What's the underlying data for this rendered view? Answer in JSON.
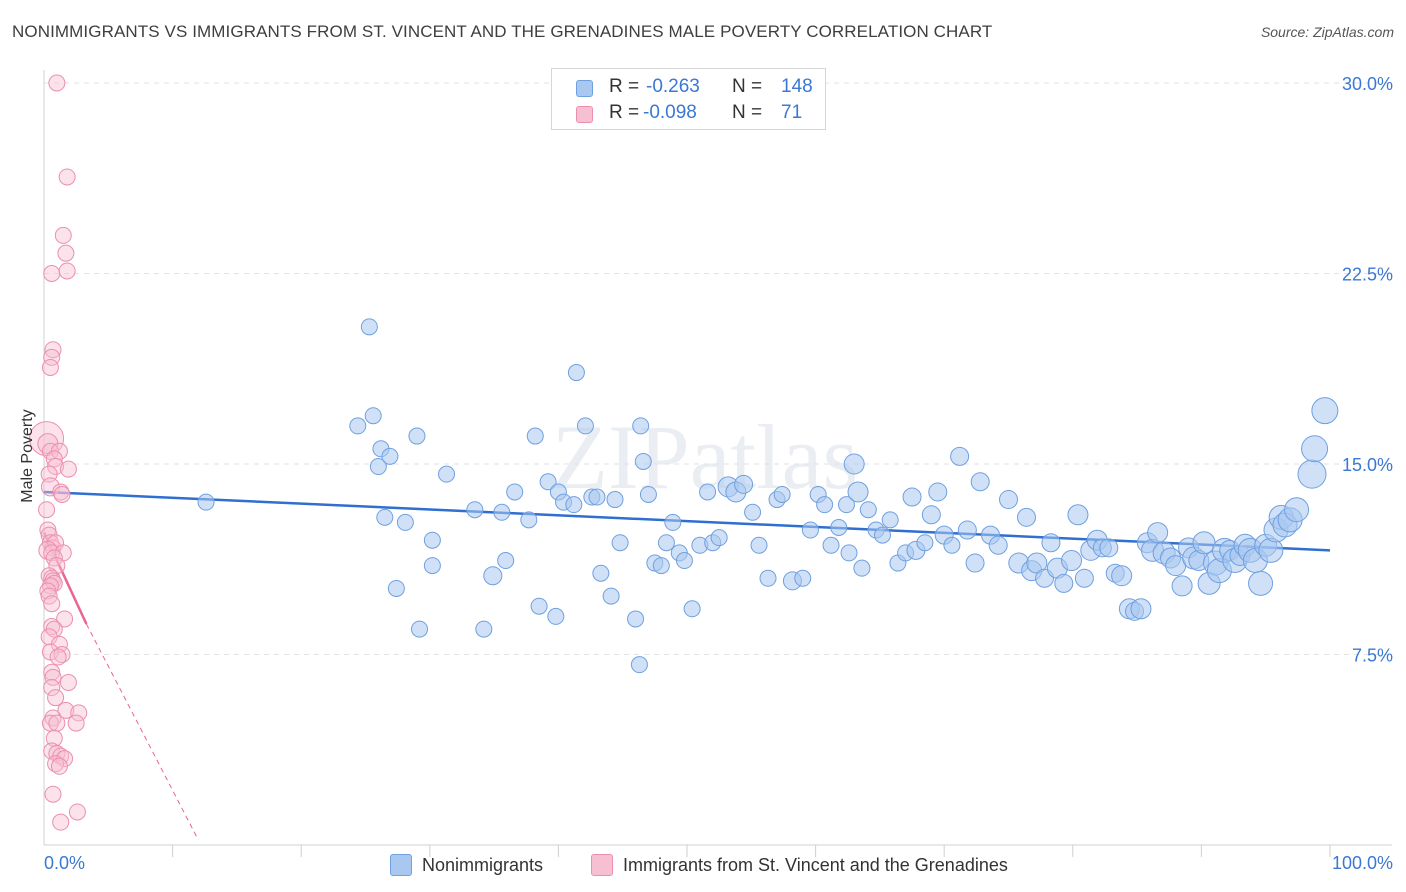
{
  "title": "NONIMMIGRANTS VS IMMIGRANTS FROM ST. VINCENT AND THE GRENADINES MALE POVERTY CORRELATION CHART",
  "source": "Source: ZipAtlas.com",
  "watermark": "ZIPatlas",
  "colors": {
    "blue_fill": "#a9c8f0",
    "blue_stroke": "#6fa0e0",
    "blue_line": "#2f6fd0",
    "pink_fill": "#f7bfd2",
    "pink_stroke": "#ec8fae",
    "pink_line": "#e8668f",
    "value_text": "#3a78d4",
    "grid": "#e2e2e2"
  },
  "stats": {
    "rows": [
      {
        "r_label": "R =",
        "r_value": "-0.263",
        "n_label": "N =",
        "n_value": "148"
      },
      {
        "r_label": "R =",
        "r_value": "-0.098",
        "n_label": "N =",
        "n_value": "71"
      }
    ]
  },
  "legend": {
    "nonimmigrants": "Nonimmigrants",
    "immigrants": "Immigrants from St. Vincent and the Grenadines"
  },
  "chart_data": {
    "type": "scatter",
    "title": "NONIMMIGRANTS VS IMMIGRANTS FROM ST. VINCENT AND THE GRENADINES MALE POVERTY CORRELATION CHART",
    "xlabel": "",
    "ylabel": "Male Poverty",
    "xlim": [
      0,
      100
    ],
    "ylim": [
      0,
      30.5
    ],
    "x_tick_labels": [
      "0.0%",
      "100.0%"
    ],
    "y_ticks": [
      7.5,
      15.0,
      22.5,
      30.0
    ],
    "y_tick_labels": [
      "7.5%",
      "15.0%",
      "22.5%",
      "30.0%"
    ],
    "grid": true,
    "series": [
      {
        "name": "Nonimmigrants",
        "color": "#a9c8f0",
        "trend": {
          "x": [
            0,
            100
          ],
          "y": [
            13.9,
            11.6
          ],
          "style": "solid"
        },
        "points": [
          [
            12.6,
            13.5,
            5
          ],
          [
            24.4,
            16.5,
            5
          ],
          [
            25.3,
            20.4,
            5
          ],
          [
            25.6,
            16.9,
            5
          ],
          [
            26.0,
            14.9,
            5
          ],
          [
            26.2,
            15.6,
            5
          ],
          [
            26.5,
            12.9,
            5
          ],
          [
            26.9,
            15.3,
            5
          ],
          [
            27.4,
            10.1,
            5
          ],
          [
            28.1,
            12.7,
            5
          ],
          [
            29.0,
            16.1,
            5
          ],
          [
            29.2,
            8.5,
            5
          ],
          [
            30.2,
            12.0,
            5
          ],
          [
            30.2,
            11.0,
            5
          ],
          [
            31.3,
            14.6,
            5
          ],
          [
            33.5,
            13.2,
            5
          ],
          [
            34.2,
            8.5,
            5
          ],
          [
            34.9,
            10.6,
            6
          ],
          [
            35.9,
            11.2,
            5
          ],
          [
            35.6,
            13.1,
            5
          ],
          [
            36.6,
            13.9,
            5
          ],
          [
            37.7,
            12.8,
            5
          ],
          [
            38.2,
            16.1,
            5
          ],
          [
            38.5,
            9.4,
            5
          ],
          [
            39.2,
            14.3,
            5
          ],
          [
            39.8,
            9.0,
            5
          ],
          [
            40.0,
            13.9,
            5
          ],
          [
            40.4,
            13.5,
            5
          ],
          [
            41.2,
            13.4,
            5
          ],
          [
            41.4,
            18.6,
            5
          ],
          [
            42.1,
            16.5,
            5
          ],
          [
            42.6,
            13.7,
            5
          ],
          [
            43.0,
            13.7,
            5
          ],
          [
            43.3,
            10.7,
            5
          ],
          [
            44.1,
            9.8,
            5
          ],
          [
            44.4,
            13.6,
            5
          ],
          [
            44.8,
            11.9,
            5
          ],
          [
            46.0,
            8.9,
            5
          ],
          [
            46.4,
            16.5,
            5
          ],
          [
            46.6,
            15.1,
            5
          ],
          [
            46.3,
            7.1,
            5
          ],
          [
            47.0,
            13.8,
            5
          ],
          [
            47.5,
            11.1,
            5
          ],
          [
            48.0,
            11.0,
            5
          ],
          [
            48.4,
            11.9,
            5
          ],
          [
            48.9,
            12.7,
            5
          ],
          [
            49.4,
            11.5,
            5
          ],
          [
            49.8,
            11.2,
            5
          ],
          [
            50.4,
            9.3,
            5
          ],
          [
            51.0,
            11.8,
            5
          ],
          [
            51.6,
            13.9,
            5
          ],
          [
            52.0,
            11.9,
            5
          ],
          [
            52.5,
            12.1,
            5
          ],
          [
            53.2,
            14.1,
            7
          ],
          [
            53.8,
            13.9,
            7
          ],
          [
            54.4,
            14.2,
            6
          ],
          [
            55.1,
            13.1,
            5
          ],
          [
            55.6,
            11.8,
            5
          ],
          [
            56.3,
            10.5,
            5
          ],
          [
            57.0,
            13.6,
            5
          ],
          [
            57.4,
            13.8,
            5
          ],
          [
            58.2,
            10.4,
            6
          ],
          [
            59.0,
            10.5,
            5
          ],
          [
            59.6,
            12.4,
            5
          ],
          [
            60.2,
            13.8,
            5
          ],
          [
            60.7,
            13.4,
            5
          ],
          [
            61.2,
            11.8,
            5
          ],
          [
            61.8,
            12.5,
            5
          ],
          [
            62.4,
            13.4,
            5
          ],
          [
            62.6,
            11.5,
            5
          ],
          [
            63.0,
            15.0,
            7
          ],
          [
            63.3,
            13.9,
            7
          ],
          [
            63.6,
            10.9,
            5
          ],
          [
            64.1,
            13.2,
            5
          ],
          [
            64.7,
            12.4,
            5
          ],
          [
            65.2,
            12.2,
            5
          ],
          [
            65.8,
            12.8,
            5
          ],
          [
            66.4,
            11.1,
            5
          ],
          [
            67.0,
            11.5,
            5
          ],
          [
            67.5,
            13.7,
            6
          ],
          [
            67.8,
            11.6,
            6
          ],
          [
            68.5,
            11.9,
            5
          ],
          [
            69.0,
            13.0,
            6
          ],
          [
            69.5,
            13.9,
            6
          ],
          [
            70.0,
            12.2,
            6
          ],
          [
            70.6,
            11.8,
            5
          ],
          [
            71.2,
            15.3,
            6
          ],
          [
            71.8,
            12.4,
            6
          ],
          [
            72.4,
            11.1,
            6
          ],
          [
            72.8,
            14.3,
            6
          ],
          [
            73.6,
            12.2,
            6
          ],
          [
            74.2,
            11.8,
            6
          ],
          [
            75.0,
            13.6,
            6
          ],
          [
            75.8,
            11.1,
            7
          ],
          [
            76.4,
            12.9,
            6
          ],
          [
            76.8,
            10.8,
            7
          ],
          [
            77.2,
            11.1,
            7
          ],
          [
            77.8,
            10.5,
            6
          ],
          [
            78.3,
            11.9,
            6
          ],
          [
            78.8,
            10.9,
            7
          ],
          [
            79.3,
            10.3,
            6
          ],
          [
            79.9,
            11.2,
            7
          ],
          [
            80.4,
            13.0,
            7
          ],
          [
            80.9,
            10.5,
            6
          ],
          [
            81.4,
            11.6,
            7
          ],
          [
            81.9,
            12.0,
            7
          ],
          [
            82.3,
            11.7,
            6
          ],
          [
            82.8,
            11.7,
            6
          ],
          [
            83.3,
            10.7,
            6
          ],
          [
            83.8,
            10.6,
            7
          ],
          [
            84.4,
            9.3,
            7
          ],
          [
            84.8,
            9.2,
            6
          ],
          [
            85.3,
            9.3,
            7
          ],
          [
            85.8,
            11.9,
            7
          ],
          [
            86.2,
            11.6,
            8
          ],
          [
            86.6,
            12.3,
            7
          ],
          [
            87.1,
            11.5,
            8
          ],
          [
            87.6,
            11.3,
            7
          ],
          [
            88.0,
            11.0,
            7
          ],
          [
            88.5,
            10.2,
            7
          ],
          [
            89.0,
            11.7,
            7
          ],
          [
            89.4,
            11.3,
            8
          ],
          [
            89.8,
            11.2,
            7
          ],
          [
            90.2,
            11.9,
            8
          ],
          [
            90.6,
            10.3,
            8
          ],
          [
            91.1,
            11.1,
            9
          ],
          [
            91.4,
            10.8,
            9
          ],
          [
            91.8,
            11.6,
            9
          ],
          [
            92.2,
            11.6,
            7
          ],
          [
            92.6,
            11.2,
            9
          ],
          [
            93.0,
            11.4,
            7
          ],
          [
            93.4,
            11.8,
            8
          ],
          [
            93.8,
            11.6,
            9
          ],
          [
            94.2,
            11.2,
            9
          ],
          [
            94.6,
            10.3,
            9
          ],
          [
            95.0,
            11.8,
            8
          ],
          [
            95.4,
            11.6,
            9
          ],
          [
            95.8,
            12.4,
            9
          ],
          [
            96.2,
            12.9,
            9
          ],
          [
            96.5,
            12.6,
            9
          ],
          [
            96.9,
            12.8,
            9
          ],
          [
            97.4,
            13.2,
            9
          ],
          [
            98.6,
            14.6,
            11
          ],
          [
            98.8,
            15.6,
            10
          ],
          [
            99.6,
            17.1,
            10
          ]
        ]
      },
      {
        "name": "Immigrants from St. Vincent and the Grenadines",
        "color": "#f7bfd2",
        "trend": {
          "x": [
            0,
            3.3,
            12.0
          ],
          "y": [
            12.3,
            8.7,
            0.2
          ],
          "style": "solid-then-dashed"
        },
        "points": [
          [
            1.0,
            30.0,
            5
          ],
          [
            1.8,
            26.3,
            5
          ],
          [
            1.5,
            24.0,
            5
          ],
          [
            1.7,
            23.3,
            5
          ],
          [
            0.6,
            22.5,
            5
          ],
          [
            1.8,
            22.6,
            5
          ],
          [
            0.7,
            19.5,
            5
          ],
          [
            0.6,
            19.2,
            5
          ],
          [
            0.5,
            18.8,
            5
          ],
          [
            0.2,
            16.0,
            14
          ],
          [
            0.3,
            15.8,
            7
          ],
          [
            0.5,
            15.5,
            5
          ],
          [
            1.2,
            15.5,
            5
          ],
          [
            0.8,
            15.2,
            5
          ],
          [
            0.9,
            14.9,
            5
          ],
          [
            1.9,
            14.8,
            5
          ],
          [
            0.4,
            14.6,
            5
          ],
          [
            0.5,
            14.1,
            6
          ],
          [
            1.3,
            13.9,
            5
          ],
          [
            1.4,
            13.8,
            5
          ],
          [
            0.2,
            13.2,
            5
          ],
          [
            0.3,
            12.4,
            5
          ],
          [
            0.4,
            12.2,
            5
          ],
          [
            0.5,
            11.9,
            5
          ],
          [
            0.7,
            11.7,
            5
          ],
          [
            0.9,
            11.9,
            5
          ],
          [
            0.3,
            11.6,
            6
          ],
          [
            0.6,
            11.5,
            5
          ],
          [
            1.5,
            11.5,
            5
          ],
          [
            0.8,
            11.3,
            5
          ],
          [
            1.0,
            11.0,
            5
          ],
          [
            0.4,
            10.6,
            5
          ],
          [
            0.6,
            10.5,
            5
          ],
          [
            0.7,
            10.4,
            5
          ],
          [
            0.8,
            10.3,
            5
          ],
          [
            0.5,
            10.2,
            5
          ],
          [
            0.3,
            10.0,
            5
          ],
          [
            0.4,
            9.8,
            5
          ],
          [
            0.6,
            9.5,
            5
          ],
          [
            1.6,
            8.9,
            5
          ],
          [
            0.6,
            8.6,
            5
          ],
          [
            0.8,
            8.5,
            5
          ],
          [
            0.4,
            8.2,
            5
          ],
          [
            1.2,
            7.9,
            5
          ],
          [
            0.5,
            7.6,
            5
          ],
          [
            1.4,
            7.5,
            5
          ],
          [
            1.1,
            7.4,
            5
          ],
          [
            0.6,
            6.8,
            5
          ],
          [
            0.7,
            6.6,
            5
          ],
          [
            1.9,
            6.4,
            5
          ],
          [
            0.6,
            6.2,
            5
          ],
          [
            0.9,
            5.8,
            5
          ],
          [
            1.7,
            5.3,
            5
          ],
          [
            2.7,
            5.2,
            5
          ],
          [
            0.7,
            5.0,
            5
          ],
          [
            0.5,
            4.8,
            5
          ],
          [
            1.0,
            4.8,
            5
          ],
          [
            2.5,
            4.8,
            5
          ],
          [
            0.8,
            4.2,
            5
          ],
          [
            0.6,
            3.7,
            5
          ],
          [
            1.0,
            3.6,
            5
          ],
          [
            1.3,
            3.5,
            5
          ],
          [
            1.6,
            3.4,
            5
          ],
          [
            0.9,
            3.2,
            5
          ],
          [
            1.2,
            3.1,
            5
          ],
          [
            0.7,
            2.0,
            5
          ],
          [
            2.6,
            1.3,
            5
          ],
          [
            1.3,
            0.9,
            5
          ]
        ]
      }
    ]
  }
}
